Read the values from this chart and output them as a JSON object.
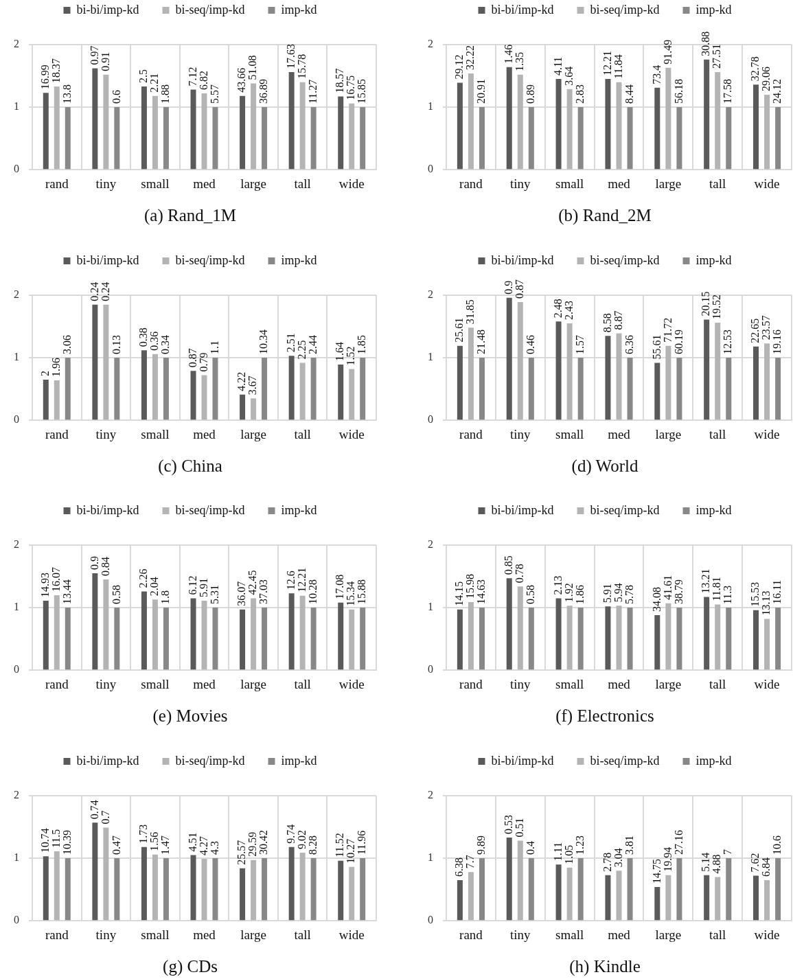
{
  "chart_data": [
    {
      "type": "bar",
      "title": "(a) Rand_1M",
      "categories": [
        "rand",
        "tiny",
        "small",
        "med",
        "large",
        "tall",
        "wide"
      ],
      "series": [
        {
          "name": "bi-bi/imp-kd",
          "color": "#5a5a5a",
          "values": [
            1.23,
            1.62,
            1.33,
            1.28,
            1.18,
            1.56,
            1.17
          ]
        },
        {
          "name": "bi-seq/imp-kd",
          "color": "#b4b4b4",
          "values": [
            1.33,
            1.52,
            1.18,
            1.22,
            1.38,
            1.4,
            1.06
          ]
        },
        {
          "name": "imp-kd",
          "color": "#888888",
          "values": [
            1,
            1,
            1,
            1,
            1,
            1,
            1
          ]
        }
      ],
      "ylim": [
        0,
        2
      ],
      "yticks": [
        0,
        1,
        2
      ],
      "grid": true,
      "legend": "top",
      "annotations": [
        "16.99",
        "18.37",
        "13.8",
        "0.97",
        "0.91",
        "0.6",
        "2.5",
        "2.21",
        "1.88",
        "7.12",
        "6.82",
        "5.57",
        "43.66",
        "51.08",
        "36.89",
        "17.63",
        "15.78",
        "11.27",
        "18.57",
        "16.75",
        "15.85"
      ]
    },
    {
      "type": "bar",
      "title": "(b) Rand_2M",
      "categories": [
        "rand",
        "tiny",
        "small",
        "med",
        "large",
        "tall",
        "wide"
      ],
      "series": [
        {
          "name": "bi-bi/imp-kd",
          "color": "#5a5a5a",
          "values": [
            1.39,
            1.64,
            1.45,
            1.45,
            1.31,
            1.76,
            1.36
          ]
        },
        {
          "name": "bi-seq/imp-kd",
          "color": "#b4b4b4",
          "values": [
            1.54,
            1.52,
            1.29,
            1.4,
            1.63,
            1.56,
            1.2
          ]
        },
        {
          "name": "imp-kd",
          "color": "#888888",
          "values": [
            1,
            1,
            1,
            1,
            1,
            1,
            1
          ]
        }
      ],
      "ylim": [
        0,
        2
      ],
      "yticks": [
        0,
        1,
        2
      ],
      "grid": true,
      "legend": "top",
      "annotations": [
        "29.12",
        "32.22",
        "20.91",
        "1.46",
        "1.35",
        "0.89",
        "4.11",
        "3.64",
        "2.83",
        "12.21",
        "11.84",
        "8.44",
        "73.4",
        "91.49",
        "56.18",
        "30.88",
        "27.51",
        "17.58",
        "32.78",
        "29.06",
        "24.12"
      ]
    },
    {
      "type": "bar",
      "title": "(c) China",
      "categories": [
        "rand",
        "tiny",
        "small",
        "med",
        "large",
        "tall",
        "wide"
      ],
      "series": [
        {
          "name": "bi-bi/imp-kd",
          "color": "#5a5a5a",
          "values": [
            0.65,
            1.85,
            1.12,
            0.79,
            0.41,
            1.03,
            0.89
          ]
        },
        {
          "name": "bi-seq/imp-kd",
          "color": "#b4b4b4",
          "values": [
            0.64,
            1.85,
            1.06,
            0.72,
            0.35,
            0.92,
            0.82
          ]
        },
        {
          "name": "imp-kd",
          "color": "#888888",
          "values": [
            1,
            1,
            1,
            1,
            1,
            1,
            1
          ]
        }
      ],
      "ylim": [
        0,
        2
      ],
      "yticks": [
        0,
        1,
        2
      ],
      "grid": true,
      "legend": "top",
      "annotations": [
        "2",
        "1.96",
        "3.06",
        "0.24",
        "0.24",
        "0.13",
        "0.38",
        "0.36",
        "0.34",
        "0.87",
        "0.79",
        "1.1",
        "4.22",
        "3.67",
        "10.34",
        "2.51",
        "2.25",
        "2.44",
        "1.64",
        "1.52",
        "1.85"
      ]
    },
    {
      "type": "bar",
      "title": "(d) World",
      "categories": [
        "rand",
        "tiny",
        "small",
        "med",
        "large",
        "tall",
        "wide"
      ],
      "series": [
        {
          "name": "bi-bi/imp-kd",
          "color": "#5a5a5a",
          "values": [
            1.19,
            1.96,
            1.58,
            1.35,
            0.92,
            1.61,
            1.18
          ]
        },
        {
          "name": "bi-seq/imp-kd",
          "color": "#b4b4b4",
          "values": [
            1.48,
            1.89,
            1.55,
            1.39,
            1.19,
            1.56,
            1.23
          ]
        },
        {
          "name": "imp-kd",
          "color": "#888888",
          "values": [
            1,
            1,
            1,
            1,
            1,
            1,
            1
          ]
        }
      ],
      "ylim": [
        0,
        2
      ],
      "yticks": [
        0,
        1,
        2
      ],
      "grid": true,
      "legend": "top",
      "annotations": [
        "25.61",
        "31.85",
        "21.48",
        "0.9",
        "0.87",
        "0.46",
        "2.48",
        "2.43",
        "1.57",
        "8.58",
        "8.87",
        "6.36",
        "55.61",
        "71.72",
        "60.19",
        "20.15",
        "19.52",
        "12.53",
        "22.65",
        "23.57",
        "19.16"
      ]
    },
    {
      "type": "bar",
      "title": "(e) Movies",
      "categories": [
        "rand",
        "tiny",
        "small",
        "med",
        "large",
        "tall",
        "wide"
      ],
      "series": [
        {
          "name": "bi-bi/imp-kd",
          "color": "#5a5a5a",
          "values": [
            1.11,
            1.55,
            1.26,
            1.15,
            0.97,
            1.23,
            1.08
          ]
        },
        {
          "name": "bi-seq/imp-kd",
          "color": "#b4b4b4",
          "values": [
            1.2,
            1.45,
            1.13,
            1.11,
            1.15,
            1.19,
            0.97
          ]
        },
        {
          "name": "imp-kd",
          "color": "#888888",
          "values": [
            1,
            1,
            1,
            1,
            1,
            1,
            1
          ]
        }
      ],
      "ylim": [
        0,
        2
      ],
      "yticks": [
        0,
        1,
        2
      ],
      "grid": true,
      "legend": "top",
      "annotations": [
        "14.93",
        "16.07",
        "13.44",
        "0.9",
        "0.84",
        "0.58",
        "2.26",
        "2.04",
        "1.8",
        "6.12",
        "5.91",
        "5.31",
        "36.07",
        "42.45",
        "37.03",
        "12.6",
        "12.21",
        "10.28",
        "17.08",
        "15.34",
        "15.88"
      ]
    },
    {
      "type": "bar",
      "title": "(f) Electronics",
      "categories": [
        "rand",
        "tiny",
        "small",
        "med",
        "large",
        "tall",
        "wide"
      ],
      "series": [
        {
          "name": "bi-bi/imp-kd",
          "color": "#5a5a5a",
          "values": [
            0.97,
            1.47,
            1.15,
            1.02,
            0.88,
            1.17,
            0.96
          ]
        },
        {
          "name": "bi-seq/imp-kd",
          "color": "#b4b4b4",
          "values": [
            1.09,
            1.34,
            1.03,
            1.03,
            1.07,
            1.05,
            0.82
          ]
        },
        {
          "name": "imp-kd",
          "color": "#888888",
          "values": [
            1,
            1,
            1,
            1,
            1,
            1,
            1
          ]
        }
      ],
      "ylim": [
        0,
        2
      ],
      "yticks": [
        0,
        1,
        2
      ],
      "grid": true,
      "legend": "top",
      "annotations": [
        "14.15",
        "15.98",
        "14.63",
        "0.85",
        "0.78",
        "0.58",
        "2.13",
        "1.92",
        "1.86",
        "5.91",
        "5.94",
        "5.78",
        "34.08",
        "41.61",
        "38.79",
        "13.21",
        "11.81",
        "11.3",
        "15.53",
        "13.13",
        "16.11"
      ]
    },
    {
      "type": "bar",
      "title": "(g) CDs",
      "categories": [
        "rand",
        "tiny",
        "small",
        "med",
        "large",
        "tall",
        "wide"
      ],
      "series": [
        {
          "name": "bi-bi/imp-kd",
          "color": "#5a5a5a",
          "values": [
            1.03,
            1.57,
            1.18,
            1.05,
            0.84,
            1.18,
            0.96
          ]
        },
        {
          "name": "bi-seq/imp-kd",
          "color": "#b4b4b4",
          "values": [
            1.11,
            1.49,
            1.06,
            0.99,
            0.97,
            1.09,
            0.86
          ]
        },
        {
          "name": "imp-kd",
          "color": "#888888",
          "values": [
            1,
            1,
            1,
            1,
            1,
            1,
            1
          ]
        }
      ],
      "ylim": [
        0,
        2
      ],
      "yticks": [
        0,
        1,
        2
      ],
      "grid": true,
      "legend": "top",
      "annotations": [
        "10.74",
        "11.5",
        "10.39",
        "0.74",
        "0.7",
        "0.47",
        "1.73",
        "1.56",
        "1.47",
        "4.51",
        "4.27",
        "4.3",
        "25.57",
        "29.59",
        "30.42",
        "9.74",
        "9.02",
        "8.28",
        "11.52",
        "10.27",
        "11.96"
      ]
    },
    {
      "type": "bar",
      "title": "(h) Kindle",
      "categories": [
        "rand",
        "tiny",
        "small",
        "med",
        "large",
        "tall",
        "wide"
      ],
      "series": [
        {
          "name": "bi-bi/imp-kd",
          "color": "#5a5a5a",
          "values": [
            0.65,
            1.33,
            0.9,
            0.73,
            0.54,
            0.73,
            0.72
          ]
        },
        {
          "name": "bi-seq/imp-kd",
          "color": "#b4b4b4",
          "values": [
            0.78,
            1.28,
            0.85,
            0.8,
            0.73,
            0.7,
            0.65
          ]
        },
        {
          "name": "imp-kd",
          "color": "#888888",
          "values": [
            1,
            1,
            1,
            1,
            1,
            1,
            1
          ]
        }
      ],
      "ylim": [
        0,
        2
      ],
      "yticks": [
        0,
        1,
        2
      ],
      "grid": true,
      "legend": "top",
      "annotations": [
        "6.38",
        "7.7",
        "9.89",
        "0.53",
        "0.51",
        "0.4",
        "1.11",
        "1.05",
        "1.23",
        "2.78",
        "3.04",
        "3.81",
        "14.75",
        "19.94",
        "27.16",
        "5.14",
        "4.88",
        "7",
        "7.62",
        "6.84",
        "10.6"
      ]
    }
  ]
}
